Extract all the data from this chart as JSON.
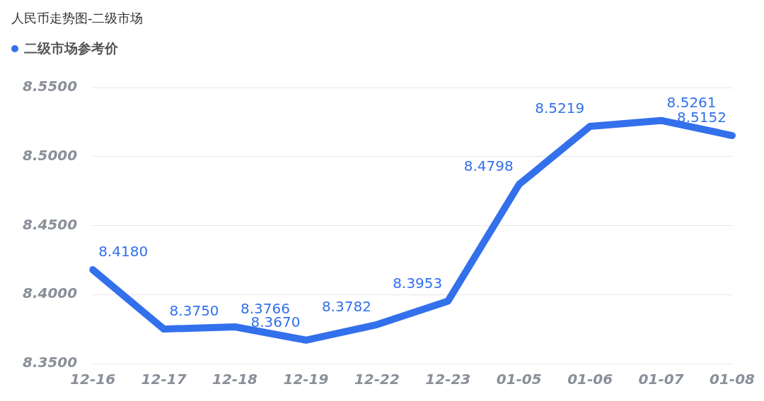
{
  "chart_data": {
    "type": "line",
    "title": "人民币走势图-二级市场",
    "categories": [
      "12-16",
      "12-17",
      "12-18",
      "12-19",
      "12-22",
      "12-23",
      "01-05",
      "01-06",
      "01-07",
      "01-08"
    ],
    "series": [
      {
        "name": "二级市场参考价",
        "color": "#3370eb",
        "values": [
          8.418,
          8.375,
          8.3766,
          8.367,
          8.3782,
          8.3953,
          8.4798,
          8.5219,
          8.5261,
          8.5152
        ],
        "value_labels": [
          "8.4180",
          "8.3750",
          "8.3766",
          "8.3670",
          "8.3782",
          "8.3953",
          "8.4798",
          "8.5219",
          "8.5261",
          "8.5152"
        ]
      }
    ],
    "ylim": [
      8.35,
      8.55
    ],
    "yticks": [
      {
        "value": 8.35,
        "label": "8.3500"
      },
      {
        "value": 8.4,
        "label": "8.4000"
      },
      {
        "value": 8.45,
        "label": "8.4500"
      },
      {
        "value": 8.5,
        "label": "8.5000"
      },
      {
        "value": 8.55,
        "label": "8.5500"
      }
    ],
    "grid": "y",
    "legend": "top left",
    "marker": "none",
    "line_style": "solid"
  }
}
